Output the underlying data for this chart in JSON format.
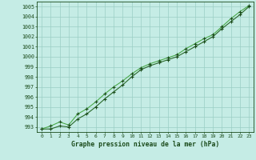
{
  "xlabel": "Graphe pression niveau de la mer (hPa)",
  "hours": [
    0,
    1,
    2,
    3,
    4,
    5,
    6,
    7,
    8,
    9,
    10,
    11,
    12,
    13,
    14,
    15,
    16,
    17,
    18,
    19,
    20,
    21,
    22,
    23
  ],
  "series1": [
    992.8,
    992.8,
    993.1,
    993.0,
    993.8,
    994.3,
    995.0,
    995.8,
    996.5,
    997.2,
    998.0,
    998.7,
    999.1,
    999.4,
    999.7,
    1000.0,
    1000.5,
    1001.0,
    1001.5,
    1002.0,
    1002.8,
    1003.5,
    1004.2,
    1005.0
  ],
  "series2": [
    992.8,
    993.1,
    993.5,
    993.2,
    994.3,
    994.8,
    995.5,
    996.3,
    997.0,
    997.6,
    998.3,
    998.9,
    999.3,
    999.6,
    999.9,
    1000.2,
    1000.8,
    1001.3,
    1001.8,
    1002.2,
    1003.0,
    1003.8,
    1004.5,
    1005.1
  ],
  "line_color1": "#2a6a2a",
  "line_color2": "#4aaa4a",
  "marker_color": "#1a4a1a",
  "bg_color": "#c5ece5",
  "grid_color": "#9acfc5",
  "text_color": "#1a4a1a",
  "ylim_min": 992.5,
  "ylim_max": 1005.5,
  "ytick_min": 993,
  "ytick_max": 1005
}
